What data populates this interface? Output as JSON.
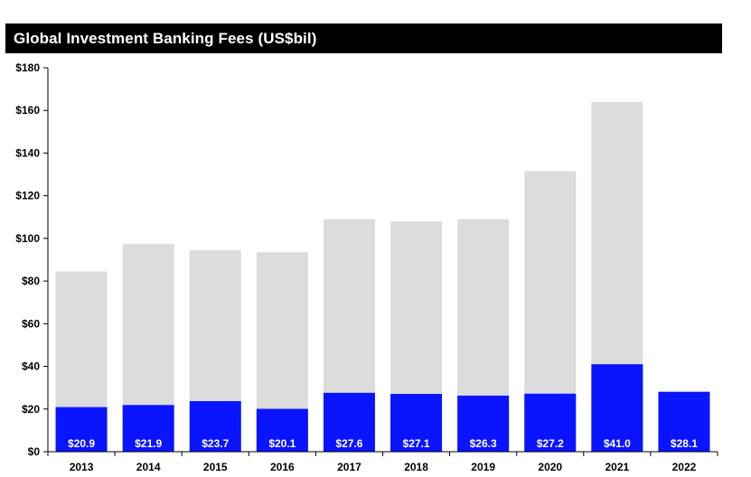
{
  "chart_data": {
    "type": "bar",
    "title": "Global Investment Banking Fees (US$bil)",
    "xlabel": "",
    "ylabel": "",
    "categories": [
      "2013",
      "2014",
      "2015",
      "2016",
      "2017",
      "2018",
      "2019",
      "2020",
      "2021",
      "2022"
    ],
    "series": [
      {
        "values": [
          84.5,
          97.5,
          94.5,
          93.5,
          109,
          108,
          109,
          131.5,
          164,
          null
        ],
        "color": "#dcdcdc"
      },
      {
        "values": [
          20.9,
          21.9,
          23.7,
          20.1,
          27.6,
          27.1,
          26.3,
          27.2,
          41.0,
          28.1
        ],
        "color": "#0a14ff"
      }
    ],
    "data_labels": [
      "$20.9",
      "$21.9",
      "$23.7",
      "$20.1",
      "$27.6",
      "$27.1",
      "$26.3",
      "$27.2",
      "$41.0",
      "$28.1"
    ],
    "y_ticks": [
      0,
      20,
      40,
      60,
      80,
      100,
      120,
      140,
      160,
      180
    ],
    "y_tick_labels": [
      "$0",
      "$20",
      "$40",
      "$60",
      "$80",
      "$100",
      "$120",
      "$140",
      "$160",
      "$180"
    ],
    "ylim": [
      0,
      180
    ],
    "grid": false,
    "legend": "none"
  }
}
